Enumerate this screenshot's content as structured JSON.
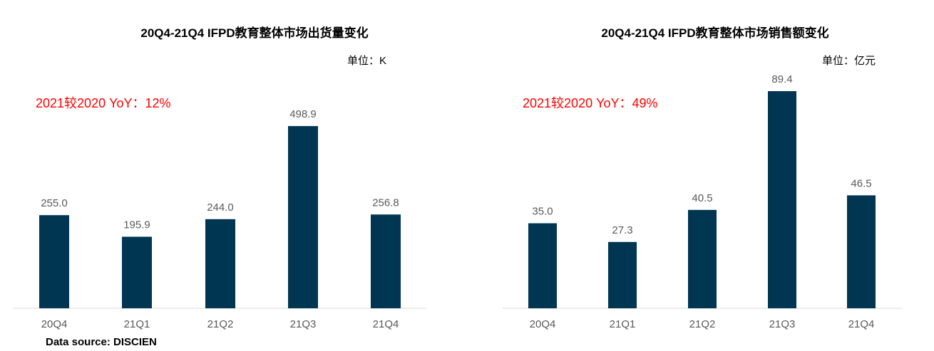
{
  "source_note": "Data source: DISCIEN",
  "colors": {
    "bar": "#003652",
    "yoy": "#ff0000",
    "axis": "#d9d9d9",
    "label": "#595959"
  },
  "chart_data": [
    {
      "type": "bar",
      "title": "20Q4-21Q4 IFPD教育整体市场出货量变化",
      "unit": "单位：K",
      "annotation": "2021较2020 YoY：12%",
      "categories": [
        "20Q4",
        "21Q1",
        "21Q2",
        "21Q3",
        "21Q4"
      ],
      "values": [
        255.0,
        195.9,
        244.0,
        498.9,
        256.8
      ],
      "value_labels": [
        "255.0",
        "195.9",
        "244.0",
        "498.9",
        "256.8"
      ],
      "ylim": [
        0,
        540
      ],
      "grid": false
    },
    {
      "type": "bar",
      "title": "20Q4-21Q4 IFPD教育整体市场销售额变化",
      "unit": "单位：亿元",
      "annotation": "2021较2020 YoY：49%",
      "categories": [
        "20Q4",
        "21Q1",
        "21Q2",
        "21Q3",
        "21Q4"
      ],
      "values": [
        35.0,
        27.3,
        40.5,
        89.4,
        46.5
      ],
      "value_labels": [
        "35.0",
        "27.3",
        "40.5",
        "89.4",
        "46.5"
      ],
      "ylim": [
        0,
        89.4
      ],
      "grid": false
    }
  ]
}
